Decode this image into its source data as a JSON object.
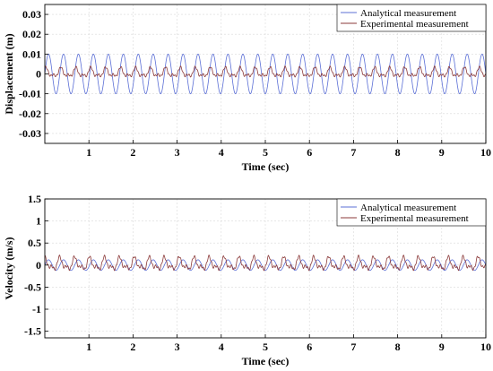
{
  "chart_data": [
    {
      "type": "line",
      "title": "",
      "xlabel": "Time (sec)",
      "ylabel": "Displacement (m)",
      "xlim": [
        0,
        10
      ],
      "ylim": [
        -0.035,
        0.035
      ],
      "xticks": [
        1,
        2,
        3,
        4,
        5,
        6,
        7,
        8,
        9,
        10
      ],
      "xtick_labels": [
        "1",
        "2",
        "3",
        "4",
        "5",
        "6",
        "7",
        "8",
        "9",
        "10"
      ],
      "yticks": [
        -0.03,
        -0.02,
        -0.01,
        0,
        0.01,
        0.02,
        0.03
      ],
      "ytick_labels": [
        "-0.03",
        "-0.02",
        "-0.01",
        "0",
        "0.01",
        "0.02",
        "0.03"
      ],
      "grid": true,
      "legend_position": "top-right",
      "series": [
        {
          "name": "Analytical measurement",
          "color": "#5b6fd6",
          "amplitude": 0.01,
          "frequency_hz": 2.95,
          "offset": 0
        },
        {
          "name": "Experimental measurement",
          "color": "#8b3a3a",
          "amplitude": 0.0025,
          "frequency_hz": 2.95,
          "offset": 0.0005,
          "noisy": true
        }
      ]
    },
    {
      "type": "line",
      "title": "",
      "xlabel": "Time (sec)",
      "ylabel": "Velocity (m/s)",
      "xlim": [
        0,
        10
      ],
      "ylim": [
        -1.65,
        1.5
      ],
      "xticks": [
        1,
        2,
        3,
        4,
        5,
        6,
        7,
        8,
        9,
        10
      ],
      "xtick_labels": [
        "1",
        "2",
        "3",
        "4",
        "5",
        "6",
        "7",
        "8",
        "9",
        "10"
      ],
      "yticks": [
        -1.5,
        -1,
        -0.5,
        0,
        0.5,
        1,
        1.5
      ],
      "ytick_labels": [
        "-1.5",
        "-1",
        "-0.5",
        "0",
        "0.5",
        "1",
        "1.5"
      ],
      "grid": true,
      "legend_position": "top-right",
      "series": [
        {
          "name": "Analytical measurement",
          "color": "#5b6fd6",
          "amplitude": 0.12,
          "frequency_hz": 2.95,
          "offset": 0
        },
        {
          "name": "Experimental measurement",
          "color": "#8b3a3a",
          "amplitude": 0.15,
          "frequency_hz": 2.95,
          "offset": 0.02,
          "noisy": true
        }
      ]
    }
  ]
}
